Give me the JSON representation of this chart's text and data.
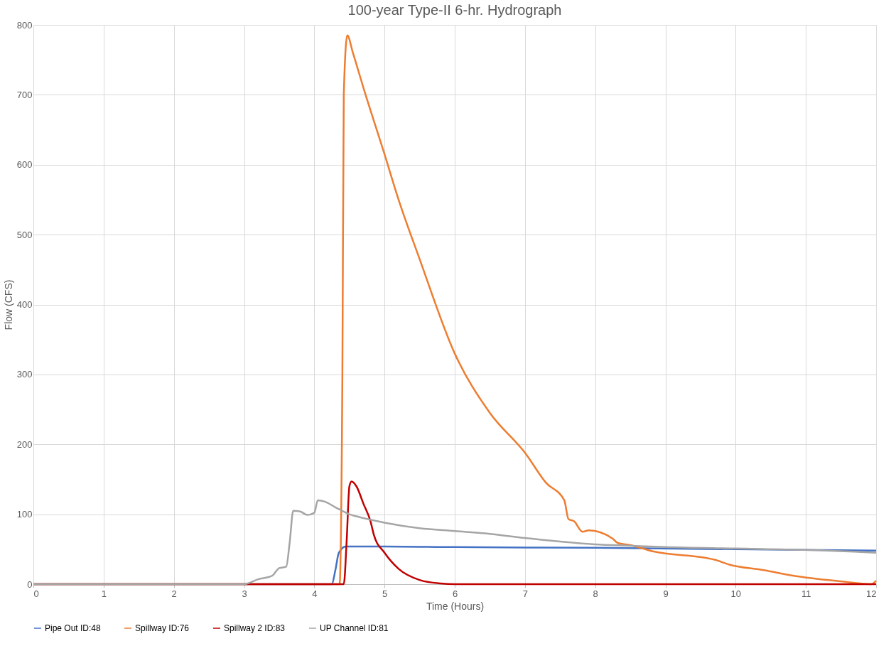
{
  "chart_data": {
    "type": "line",
    "title": "100-year Type-II 6-hr. Hydrograph",
    "xlabel": "Time (Hours)",
    "ylabel": "Flow (CFS)",
    "xlim": [
      0,
      12
    ],
    "xticks": [
      0,
      1,
      2,
      3,
      4,
      5,
      6,
      7,
      8,
      9,
      10,
      11,
      12
    ],
    "ylim": [
      0,
      800
    ],
    "yticks": [
      0,
      100,
      200,
      300,
      400,
      500,
      600,
      700,
      800
    ],
    "grid": true,
    "legend": "bottom",
    "marker": "none",
    "line_style": "solid",
    "series": [
      {
        "name": "Pipe Out ID:48",
        "color": "#4472c4",
        "x": [
          0,
          4.25,
          4.3,
          4.35,
          4.45,
          5,
          6,
          8,
          10,
          12
        ],
        "values": [
          0,
          0,
          20,
          45,
          54,
          54,
          53,
          52,
          50,
          48
        ]
      },
      {
        "name": "Spillway ID:76",
        "color": "#ed7d31",
        "x": [
          0,
          4.36,
          4.4,
          4.42,
          4.47,
          4.55,
          4.7,
          5.0,
          5.2,
          5.5,
          6.0,
          6.5,
          7.0,
          7.3,
          7.56,
          7.62,
          7.7,
          7.82,
          7.91,
          8.25,
          8.32,
          8.5,
          8.82,
          9.7,
          9.91,
          10.4,
          10.83,
          11.5,
          11.93,
          12
        ],
        "values": [
          0,
          0,
          300,
          700,
          785,
          760,
          710,
          615,
          550,
          465,
          330,
          245,
          188,
          145,
          120,
          93,
          90,
          75,
          77,
          65,
          59,
          56,
          47,
          35,
          28,
          20,
          12,
          4,
          0,
          5
        ]
      },
      {
        "name": "Spillway 2 ID:83",
        "color": "#c00000",
        "x": [
          0,
          4.42,
          4.46,
          4.5,
          4.53,
          4.6,
          4.7,
          4.8,
          4.85,
          5.0,
          5.2,
          5.5,
          5.8,
          6.0,
          12
        ],
        "values": [
          0,
          0,
          60,
          140,
          147,
          140,
          115,
          90,
          70,
          45,
          22,
          6,
          1,
          0,
          0
        ]
      },
      {
        "name": "UP Channel ID:81",
        "color": "#a5a5a5",
        "x": [
          0,
          3.0,
          3.2,
          3.4,
          3.5,
          3.6,
          3.65,
          3.7,
          3.8,
          3.9,
          4.0,
          4.05,
          4.15,
          4.3,
          4.5,
          4.6,
          5,
          5.5,
          6,
          6.5,
          7,
          7.5,
          8,
          8.5,
          9,
          10,
          11,
          12
        ],
        "values": [
          0,
          0,
          7,
          12,
          23,
          25,
          60,
          105,
          104,
          99,
          102,
          120,
          118,
          110,
          100,
          97,
          88,
          80,
          76,
          72,
          66,
          61,
          57,
          55,
          53,
          51,
          49,
          45
        ]
      }
    ]
  }
}
